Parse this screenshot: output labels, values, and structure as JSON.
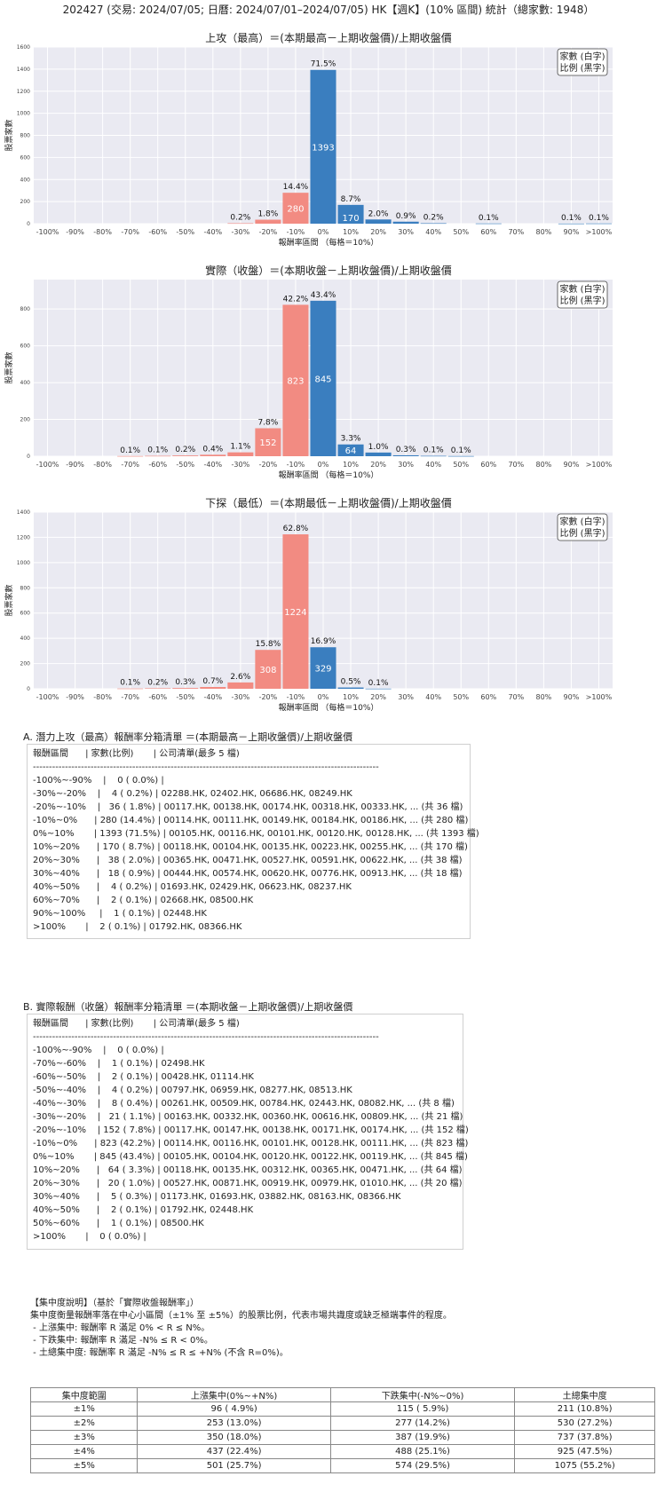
{
  "header": "202427 (交易: 2024/07/05; 日曆: 2024/07/01–2024/07/05) HK【週K】(10% 區間) 統計（總家數: 1948）",
  "colors": {
    "positive": "#3a7ebf",
    "negative": "#f28b82",
    "grid": "#ffffff",
    "plot_bg": "#eaeaf2"
  },
  "legend": {
    "line1": "家數 (白字)",
    "line2": "比例 (黑字)"
  },
  "chart_data": [
    {
      "type": "bar",
      "title": "上攻（最高）＝(本期最高－上期收盤價)/上期收盤價",
      "xlabel": "報酬率區間 （每格＝10%）",
      "ylabel": "股票家數",
      "categories": [
        "-100%",
        "-90%",
        "-80%",
        "-70%",
        "-60%",
        "-50%",
        "-40%",
        "-30%",
        "-20%",
        "-10%",
        "0%",
        "10%",
        "20%",
        "30%",
        "40%",
        "50%",
        "60%",
        "70%",
        "80%",
        "90%",
        ">100%"
      ],
      "bins": [
        {
          "from": -30,
          "count": 4,
          "pct": "0.2%"
        },
        {
          "from": -20,
          "count": 36,
          "pct": "1.8%"
        },
        {
          "from": -10,
          "count": 280,
          "pct": "14.4%"
        },
        {
          "from": 0,
          "count": 1393,
          "pct": "71.5%"
        },
        {
          "from": 10,
          "count": 170,
          "pct": "8.7%"
        },
        {
          "from": 20,
          "count": 38,
          "pct": "2.0%"
        },
        {
          "from": 30,
          "count": 18,
          "pct": "0.9%"
        },
        {
          "from": 40,
          "count": 4,
          "pct": "0.2%"
        },
        {
          "from": 60,
          "count": 2,
          "pct": "0.1%"
        },
        {
          "from": 90,
          "count": 1,
          "pct": "0.1%"
        },
        {
          "from": 100,
          "count": 2,
          "pct": "0.1%"
        }
      ],
      "yticks": [
        0,
        200,
        400,
        600,
        800,
        1000,
        1200,
        1400,
        1600
      ],
      "ylim": [
        0,
        1600
      ]
    },
    {
      "type": "bar",
      "title": "實際（收盤）＝(本期收盤－上期收盤價)/上期收盤價",
      "xlabel": "報酬率區間 （每格＝10%）",
      "ylabel": "股票家數",
      "categories": [
        "-100%",
        "-90%",
        "-80%",
        "-70%",
        "-60%",
        "-50%",
        "-40%",
        "-30%",
        "-20%",
        "-10%",
        "0%",
        "10%",
        "20%",
        "30%",
        "40%",
        "50%",
        "60%",
        "70%",
        "80%",
        "90%",
        ">100%"
      ],
      "bins": [
        {
          "from": -70,
          "count": 1,
          "pct": "0.1%"
        },
        {
          "from": -60,
          "count": 2,
          "pct": "0.1%"
        },
        {
          "from": -50,
          "count": 4,
          "pct": "0.2%"
        },
        {
          "from": -40,
          "count": 8,
          "pct": "0.4%"
        },
        {
          "from": -30,
          "count": 21,
          "pct": "1.1%"
        },
        {
          "from": -20,
          "count": 152,
          "pct": "7.8%"
        },
        {
          "from": -10,
          "count": 823,
          "pct": "42.2%"
        },
        {
          "from": 0,
          "count": 845,
          "pct": "43.4%"
        },
        {
          "from": 10,
          "count": 64,
          "pct": "3.3%"
        },
        {
          "from": 20,
          "count": 20,
          "pct": "1.0%"
        },
        {
          "from": 30,
          "count": 5,
          "pct": "0.3%"
        },
        {
          "from": 40,
          "count": 2,
          "pct": "0.1%"
        },
        {
          "from": 50,
          "count": 1,
          "pct": "0.1%"
        }
      ],
      "yticks": [
        0,
        200,
        400,
        600,
        800
      ],
      "ylim": [
        0,
        960
      ]
    },
    {
      "type": "bar",
      "title": "下探（最低）＝(本期最低－上期收盤價)/上期收盤價",
      "xlabel": "報酬率區間 （每格＝10%）",
      "ylabel": "股票家數",
      "categories": [
        "-100%",
        "-90%",
        "-80%",
        "-70%",
        "-60%",
        "-50%",
        "-40%",
        "-30%",
        "-20%",
        "-10%",
        "0%",
        "10%",
        "20%",
        "30%",
        "40%",
        "50%",
        "60%",
        "70%",
        "80%",
        "90%",
        ">100%"
      ],
      "bins": [
        {
          "from": -70,
          "count": 2,
          "pct": "0.1%"
        },
        {
          "from": -60,
          "count": 4,
          "pct": "0.2%"
        },
        {
          "from": -50,
          "count": 6,
          "pct": "0.3%"
        },
        {
          "from": -40,
          "count": 14,
          "pct": "0.7%"
        },
        {
          "from": -30,
          "count": 50,
          "pct": "2.6%"
        },
        {
          "from": -20,
          "count": 308,
          "pct": "15.8%"
        },
        {
          "from": -10,
          "count": 1224,
          "pct": "62.8%"
        },
        {
          "from": 0,
          "count": 329,
          "pct": "16.9%"
        },
        {
          "from": 10,
          "count": 10,
          "pct": "0.5%"
        },
        {
          "from": 20,
          "count": 1,
          "pct": "0.1%"
        }
      ],
      "yticks": [
        0,
        200,
        400,
        600,
        800,
        1000,
        1200,
        1400
      ],
      "ylim": [
        0,
        1400
      ]
    }
  ],
  "section_a": {
    "title": "A. 潛力上攻（最高）報酬率分箱清單 ＝(本期最高－上期收盤價)/上期收盤價",
    "lines": [
      "報酬區間      | 家數(比例)       | 公司清單(最多 5 檔)",
      "------------------------------------------------------------------------------------------------------------",
      "-100%~-90%    |    0 ( 0.0%) |",
      "-30%~-20%    |    4 ( 0.2%) | 02288.HK, 02402.HK, 06686.HK, 08249.HK",
      "-20%~-10%    |   36 ( 1.8%) | 00117.HK, 00138.HK, 00174.HK, 00318.HK, 00333.HK, ... (共 36 檔)",
      "-10%~0%      | 280 (14.4%) | 00114.HK, 00111.HK, 00149.HK, 00184.HK, 00186.HK, ... (共 280 檔)",
      "0%~10%       | 1393 (71.5%) | 00105.HK, 00116.HK, 00101.HK, 00120.HK, 00128.HK, ... (共 1393 檔)",
      "10%~20%      | 170 ( 8.7%) | 00118.HK, 00104.HK, 00135.HK, 00223.HK, 00255.HK, ... (共 170 檔)",
      "20%~30%      |   38 ( 2.0%) | 00365.HK, 00471.HK, 00527.HK, 00591.HK, 00622.HK, ... (共 38 檔)",
      "30%~40%      |   18 ( 0.9%) | 00444.HK, 00574.HK, 00620.HK, 00776.HK, 00913.HK, ... (共 18 檔)",
      "40%~50%      |    4 ( 0.2%) | 01693.HK, 02429.HK, 06623.HK, 08237.HK",
      "60%~70%      |    2 ( 0.1%) | 02668.HK, 08500.HK",
      "90%~100%     |    1 ( 0.1%) | 02448.HK",
      ">100%       |    2 ( 0.1%) | 01792.HK, 08366.HK"
    ]
  },
  "section_b": {
    "title": "B. 實際報酬（收盤）報酬率分箱清單 ＝(本期收盤－上期收盤價)/上期收盤價",
    "lines": [
      "報酬區間      | 家數(比例)       | 公司清單(最多 5 檔)",
      "------------------------------------------------------------------------------------------------------------",
      "-100%~-90%    |    0 ( 0.0%) |",
      "-70%~-60%    |    1 ( 0.1%) | 02498.HK",
      "-60%~-50%    |    2 ( 0.1%) | 00428.HK, 01114.HK",
      "-50%~-40%    |    4 ( 0.2%) | 00797.HK, 06959.HK, 08277.HK, 08513.HK",
      "-40%~-30%    |    8 ( 0.4%) | 00261.HK, 00509.HK, 00784.HK, 02443.HK, 08082.HK, ... (共 8 檔)",
      "-30%~-20%    |   21 ( 1.1%) | 00163.HK, 00332.HK, 00360.HK, 00616.HK, 00809.HK, ... (共 21 檔)",
      "-20%~-10%    | 152 ( 7.8%) | 00117.HK, 00147.HK, 00138.HK, 00171.HK, 00174.HK, ... (共 152 檔)",
      "-10%~0%      | 823 (42.2%) | 00114.HK, 00116.HK, 00101.HK, 00128.HK, 00111.HK, ... (共 823 檔)",
      "0%~10%       | 845 (43.4%) | 00105.HK, 00104.HK, 00120.HK, 00122.HK, 00119.HK, ... (共 845 檔)",
      "10%~20%      |   64 ( 3.3%) | 00118.HK, 00135.HK, 00312.HK, 00365.HK, 00471.HK, ... (共 64 檔)",
      "20%~30%      |   20 ( 1.0%) | 00527.HK, 00871.HK, 00919.HK, 00979.HK, 01010.HK, ... (共 20 檔)",
      "30%~40%      |    5 ( 0.3%) | 01173.HK, 01693.HK, 03882.HK, 08163.HK, 08366.HK",
      "40%~50%      |    2 ( 0.1%) | 01792.HK, 02448.HK",
      "50%~60%      |    1 ( 0.1%) | 08500.HK",
      ">100%       |    0 ( 0.0%) |"
    ]
  },
  "concentration": {
    "lines": [
      "【集中度說明】（基於「實際收盤報酬率」）",
      "集中度衡量報酬率落在中心小區間（±1% 至 ±5%）的股票比例，代表市場共識度或缺乏極端事件的程度。",
      " - 上漲集中: 報酬率 R 滿足 0% < R ≤ N%。",
      " - 下跌集中: 報酬率 R 滿足 -N% ≤ R < 0%。",
      " - 土總集中度: 報酬率 R 滿足 -N% ≤ R ≤ +N% (不含 R=0%)。"
    ],
    "headers": [
      "集中度範圍",
      "上漲集中(0%~+N%)",
      "下跌集中(-N%~0%)",
      "土總集中度"
    ],
    "rows": [
      [
        "±1%",
        "96 ( 4.9%)",
        "115 ( 5.9%)",
        "211 (10.8%)"
      ],
      [
        "±2%",
        "253 (13.0%)",
        "277 (14.2%)",
        "530 (27.2%)"
      ],
      [
        "±3%",
        "350 (18.0%)",
        "387 (19.9%)",
        "737 (37.8%)"
      ],
      [
        "±4%",
        "437 (22.4%)",
        "488 (25.1%)",
        "925 (47.5%)"
      ],
      [
        "±5%",
        "501 (25.7%)",
        "574 (29.5%)",
        "1075 (55.2%)"
      ]
    ]
  }
}
